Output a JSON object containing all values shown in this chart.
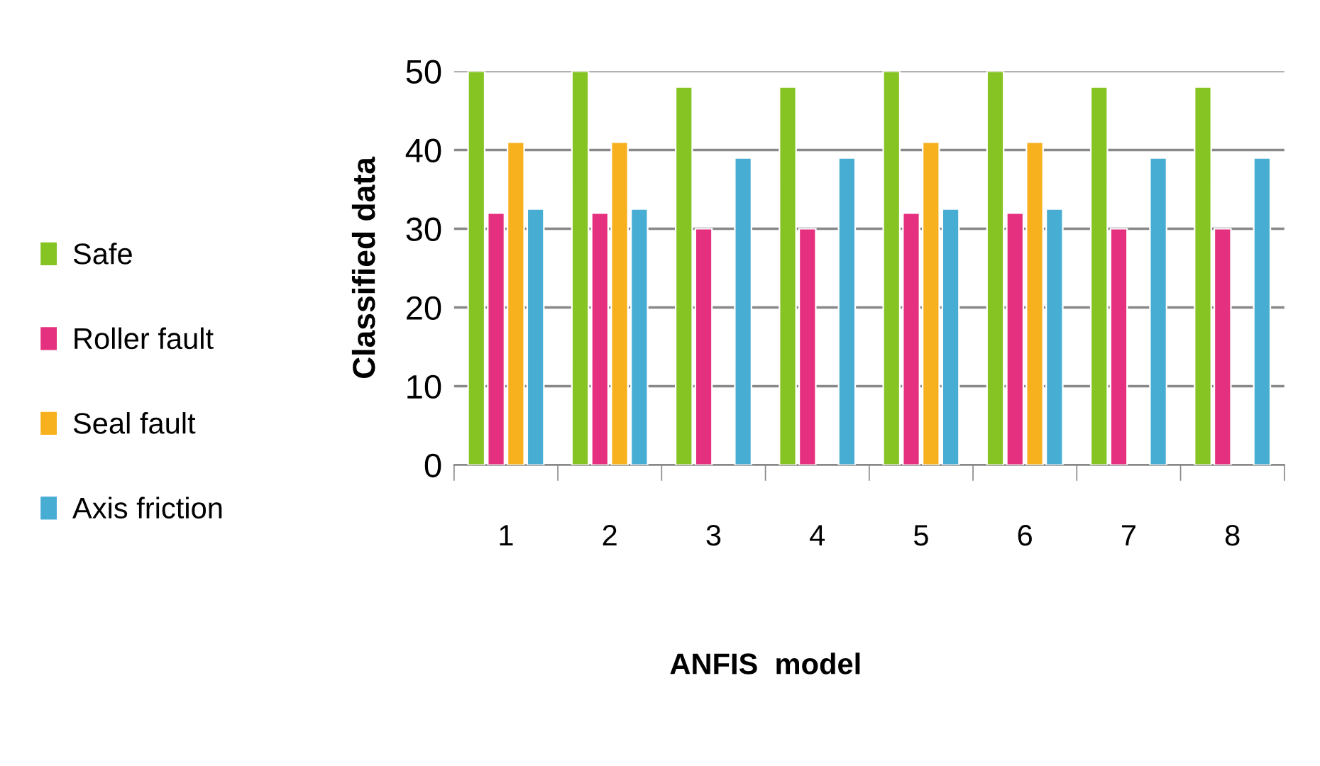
{
  "chart_data": {
    "type": "bar",
    "xlabel": "ANFIS  model",
    "ylabel": "Classified data",
    "categories": [
      "1",
      "2",
      "3",
      "4",
      "5",
      "6",
      "7",
      "8"
    ],
    "series": [
      {
        "name": "Safe",
        "color": "#86c423",
        "values": [
          50,
          50,
          48,
          48,
          50,
          50,
          48,
          48
        ]
      },
      {
        "name": "Roller fault",
        "color": "#e52f7f",
        "values": [
          32,
          32,
          30,
          30,
          32,
          32,
          30,
          30
        ]
      },
      {
        "name": "Seal fault",
        "color": "#f7b11f",
        "values": [
          41,
          41,
          null,
          null,
          41,
          41,
          null,
          null
        ]
      },
      {
        "name": "Axis friction",
        "color": "#48add3",
        "values": [
          32.5,
          32.5,
          39,
          39,
          32.5,
          32.5,
          39,
          39
        ]
      }
    ],
    "ylim": [
      0,
      50
    ],
    "yticks": [
      0,
      10,
      20,
      30,
      40,
      50
    ],
    "grid": "y",
    "legend": "left"
  }
}
